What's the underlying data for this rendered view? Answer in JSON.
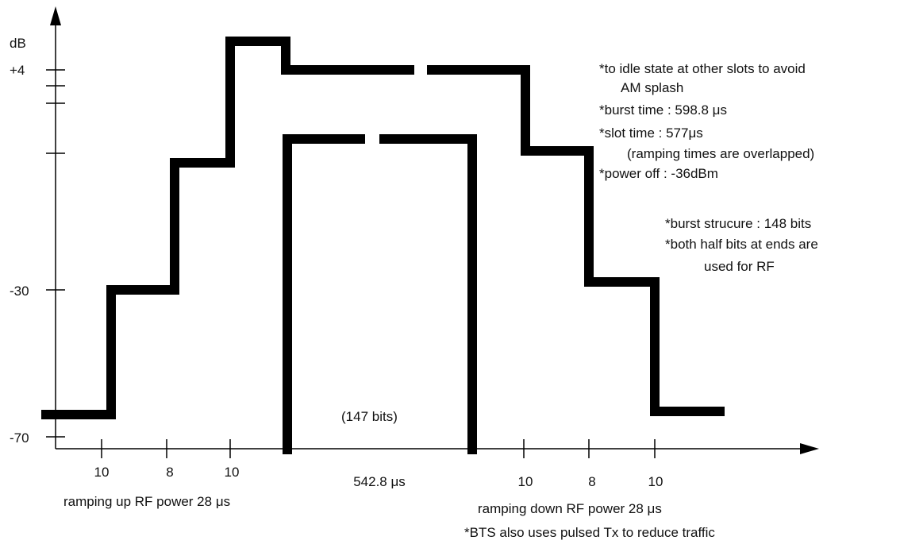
{
  "y_axis": {
    "unit": "dB",
    "labels": [
      "+4",
      "-30",
      "-70"
    ]
  },
  "x_axis": {
    "ramp_up_ticks": [
      "10",
      "8",
      "10"
    ],
    "useful_part": "542.8 μs",
    "ramp_down_ticks": [
      "10",
      "8",
      "10"
    ]
  },
  "captions": {
    "ramp_up": "ramping up RF power 28 μs",
    "bits": "(147 bits)",
    "ramp_down": "ramping down RF power 28 μs",
    "bts": "*BTS also uses pulsed Tx to reduce traffic"
  },
  "notes": [
    "*to idle state at other slots to avoid",
    "AM splash",
    "*burst time : 598.8 μs",
    "*slot time : 577μs",
    "(ramping times are overlapped)",
    "*power off : -36dBm"
  ],
  "notes2": [
    "*burst strucure : 148 bits",
    "*both half bits at ends are",
    "used for RF"
  ]
}
